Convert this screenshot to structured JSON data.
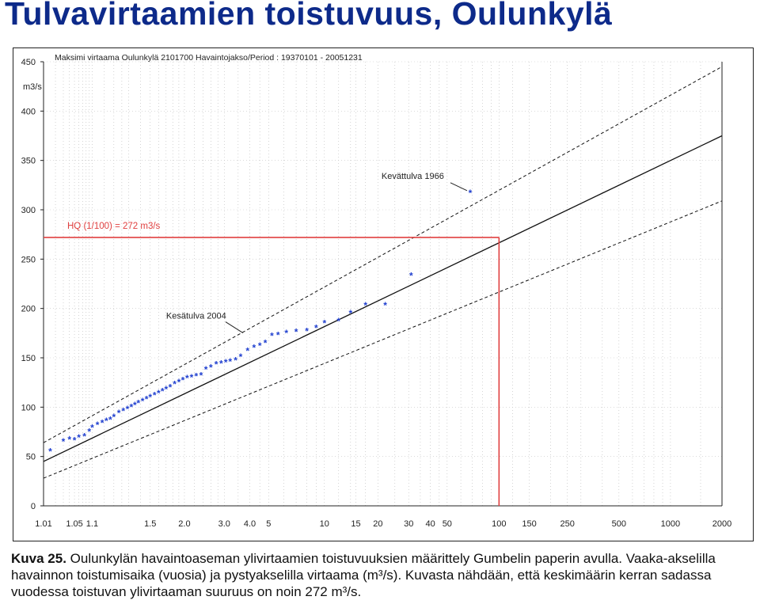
{
  "page": {
    "title": "Tulvavirtaamien toistuvuus, Oulunkylä"
  },
  "caption": {
    "label": "Kuva 25.",
    "text": "Oulunkylän havaintoaseman ylivirtaamien toistuvuuksien määrittely Gumbelin paperin avulla. Vaaka-akselilla havainnon toistumisaika (vuosia) ja pystyakselilla virtaama (m³/s). Kuvasta nähdään, että keskimäärin kerran sadassa vuodessa toistuvan ylivirtaaman suuruus on noin 272 m³/s."
  },
  "chart_data": {
    "type": "scatter",
    "title": "Maksimi virtaama Oulunkylä 2101700 Havaintojakso/Period : 19370101 - 20051231",
    "ylabel": "m3/s",
    "xlabel": "",
    "x_scale": "gumbel",
    "ylim": [
      0,
      450
    ],
    "xlim": [
      1.01,
      2000
    ],
    "y_ticks": [
      0,
      50,
      100,
      150,
      200,
      250,
      300,
      350,
      400,
      450
    ],
    "x_tick_labels": [
      "1.01",
      "1.05",
      "1.1",
      "1.5",
      "2.0",
      "3.0",
      "4.0",
      "5",
      "10",
      "15",
      "20",
      "30",
      "40",
      "50",
      "100",
      "150",
      "250",
      "500",
      "1000",
      "2000"
    ],
    "x_ticks": [
      1.01,
      1.05,
      1.1,
      1.5,
      2.0,
      3.0,
      4.0,
      5,
      10,
      15,
      20,
      30,
      40,
      50,
      100,
      150,
      250,
      500,
      1000,
      2000
    ],
    "grid": true,
    "point_color": "#1f3fcf",
    "fit_color": "#111111",
    "highlight_color": "#e04040",
    "fit_line": {
      "x": [
        1.01,
        2000
      ],
      "y": [
        45,
        375
      ]
    },
    "upper_confidence": {
      "x": [
        1.01,
        2000
      ],
      "y": [
        64,
        445
      ]
    },
    "lower_confidence": {
      "x": [
        1.01,
        2000
      ],
      "y": [
        28,
        309
      ]
    },
    "highlight": {
      "label": "HQ (1/100) = 272 m3/s",
      "x": 100,
      "y": 272
    },
    "annotations": [
      {
        "label": "Kevättulva 1966",
        "x": 68,
        "y": 317
      },
      {
        "label": "Kesätulva 2004",
        "x": 3.8,
        "y": 172
      }
    ],
    "series": [
      {
        "x": [
          1.015,
          1.03,
          1.04,
          1.05,
          1.06,
          1.075,
          1.09,
          1.1,
          1.12,
          1.14,
          1.16,
          1.18,
          1.2,
          1.23,
          1.26,
          1.29,
          1.32,
          1.35,
          1.38,
          1.42,
          1.46,
          1.5,
          1.55,
          1.6,
          1.65,
          1.7,
          1.76,
          1.83,
          1.9,
          1.97,
          2.05,
          2.14,
          2.24,
          2.35,
          2.47,
          2.6,
          2.75,
          2.9,
          3.05,
          3.2,
          3.4,
          3.6,
          3.9,
          4.2,
          4.5,
          4.8,
          5.2,
          5.6,
          6.2,
          7,
          8,
          9,
          10,
          12,
          14,
          17,
          22,
          31,
          68
        ],
        "y": [
          55,
          65,
          67,
          66,
          69,
          70,
          75,
          79,
          82,
          84,
          86,
          87,
          90,
          94,
          96,
          98,
          100,
          102,
          104,
          106,
          108,
          110,
          112,
          114,
          116,
          118,
          120,
          123,
          125,
          127,
          129,
          130,
          131,
          132,
          138,
          140,
          143,
          144,
          145,
          146,
          147,
          151,
          157,
          160,
          162,
          165,
          172,
          173,
          175,
          176,
          177,
          180,
          185,
          187,
          195,
          203,
          203,
          233,
          317
        ]
      }
    ]
  }
}
